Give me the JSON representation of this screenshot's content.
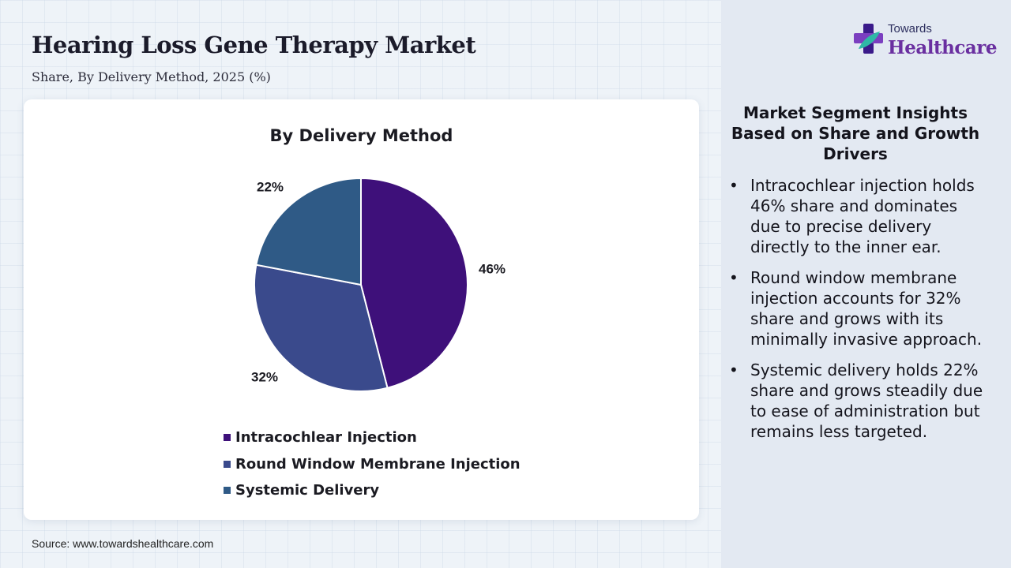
{
  "header": {
    "title": "Hearing Loss Gene Therapy Market",
    "subtitle": "Share, By Delivery Method, 2025 (%)"
  },
  "chart_data": {
    "type": "pie",
    "title": "By Delivery Method",
    "categories": [
      "Intracochlear Injection",
      "Round Window Membrane Injection",
      "Systemic Delivery"
    ],
    "values": [
      46,
      32,
      22
    ],
    "labels": [
      "46%",
      "32%",
      "22%"
    ],
    "colors": [
      "#3e107a",
      "#3a4a8c",
      "#2f5a86"
    ],
    "legend_position": "bottom"
  },
  "source": "Source: www.towardshealthcare.com",
  "brand": {
    "line1": "Towards",
    "line2": "Healthcare",
    "colors": {
      "cross_dark": "#3a1a8a",
      "cross_mid": "#7b3fc0",
      "cross_light": "#2fb8a6",
      "text": "#6a2fa0"
    }
  },
  "insights": {
    "heading": "Market Segment Insights Based on Share and Growth Drivers",
    "bullet_char": "•",
    "items": [
      "Intracochlear injection holds 46% share and dominates due to precise delivery directly to the inner ear.",
      "Round window membrane injection accounts for 32% share and grows with its minimally invasive approach.",
      "Systemic delivery holds 22% share and grows steadily due to ease of administration but remains less targeted."
    ]
  }
}
